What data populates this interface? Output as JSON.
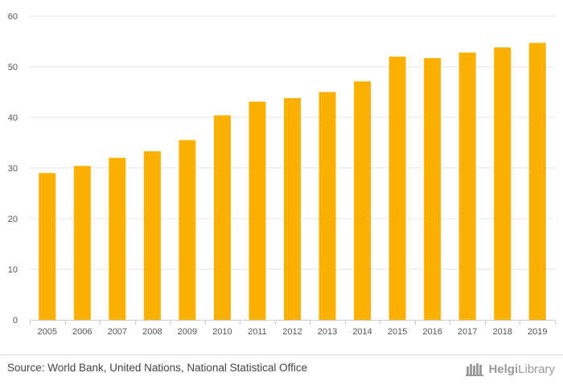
{
  "chart_data": {
    "type": "bar",
    "categories": [
      "2005",
      "2006",
      "2007",
      "2008",
      "2009",
      "2010",
      "2011",
      "2012",
      "2013",
      "2014",
      "2015",
      "2016",
      "2017",
      "2018",
      "2019"
    ],
    "values": [
      29.0,
      30.4,
      32.0,
      33.3,
      35.5,
      40.4,
      43.1,
      43.8,
      45.0,
      47.1,
      52.0,
      51.7,
      52.8,
      53.8,
      54.7
    ],
    "ylim": [
      0,
      60
    ],
    "yticks": [
      0,
      10,
      20,
      30,
      40,
      50,
      60
    ],
    "title": "",
    "xlabel": "",
    "ylabel": "",
    "grid": true,
    "bar_color": "#F9B000"
  },
  "footer": {
    "source": "Source: World Bank, United Nations, National Statistical Office",
    "brand_part1": "Helgi",
    "brand_part2": "Library"
  }
}
